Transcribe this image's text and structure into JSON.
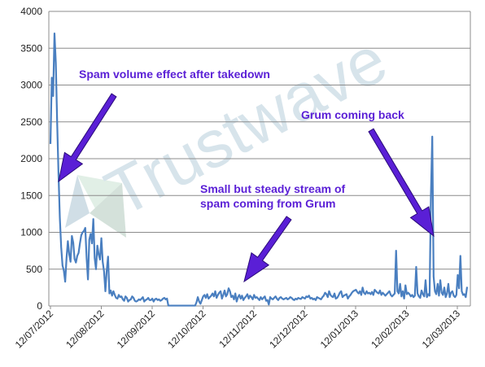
{
  "chart_data": {
    "type": "line",
    "title": "",
    "xlabel": "",
    "ylabel": "",
    "ylim": [
      0,
      4000
    ],
    "yticks": [
      0,
      500,
      1000,
      1500,
      2000,
      2500,
      3000,
      3500,
      4000
    ],
    "x_tick_labels": [
      "12/07/2012",
      "12/08/2012",
      "12/09/2012",
      "12/10/2012",
      "12/11/2012",
      "12/12/2012",
      "12/01/2013",
      "12/02/2013",
      "12/03/2013"
    ],
    "grid": true,
    "line_color": "#4a7fc0",
    "series": [
      {
        "values": [
          2200,
          3100,
          2850,
          3700,
          3300,
          2500,
          1800,
          1200,
          800,
          550,
          480,
          330,
          650,
          880,
          700,
          600,
          950,
          860,
          640,
          590,
          680,
          720,
          850,
          960,
          1000,
          1020,
          1060,
          650,
          360,
          900,
          980,
          850,
          1180,
          650,
          500,
          820,
          700,
          630,
          920,
          600,
          470,
          200,
          480,
          670,
          170,
          210,
          140,
          200,
          150,
          110,
          100,
          150,
          120,
          130,
          90,
          70,
          130,
          110,
          60,
          80,
          90,
          130,
          110,
          70,
          60,
          70,
          90,
          80,
          100,
          120,
          60,
          80,
          90,
          110,
          80,
          80,
          100,
          60,
          90,
          100,
          80,
          90,
          70,
          80,
          100,
          110,
          90,
          100,
          5,
          5,
          5,
          5,
          5,
          5,
          5,
          5,
          5,
          5,
          5,
          5,
          5,
          5,
          5,
          5,
          5,
          5,
          5,
          5,
          5,
          50,
          120,
          60,
          30,
          80,
          130,
          150,
          110,
          160,
          100,
          120,
          140,
          170,
          130,
          200,
          110,
          150,
          180,
          200,
          100,
          150,
          210,
          130,
          160,
          240,
          200,
          120,
          140,
          90,
          170,
          60,
          120,
          150,
          100,
          140,
          80,
          110,
          130,
          160,
          100,
          140,
          120,
          90,
          150,
          110,
          120,
          100,
          80,
          120,
          90,
          110,
          130,
          70,
          80,
          20,
          120,
          100,
          90,
          110,
          130,
          100,
          80,
          110,
          120,
          100,
          90,
          100,
          110,
          90,
          100,
          120,
          110,
          90,
          80,
          100,
          90,
          110,
          100,
          95,
          120,
          110,
          100,
          130,
          120,
          140,
          100,
          110,
          90,
          100,
          80,
          120,
          110,
          100,
          90,
          120,
          140,
          180,
          160,
          120,
          200,
          150,
          130,
          120,
          170,
          100,
          110,
          140,
          180,
          200,
          120,
          140,
          150,
          160,
          100,
          130,
          150,
          180,
          200,
          210,
          220,
          190,
          170,
          200,
          150,
          250,
          180,
          160,
          200,
          170,
          180,
          160,
          190,
          150,
          220,
          200,
          180,
          170,
          210,
          150,
          180,
          160,
          140,
          160,
          180,
          200,
          150,
          130,
          150,
          170,
          750,
          200,
          170,
          300,
          130,
          200,
          100,
          280,
          160,
          180,
          160,
          130,
          150,
          120,
          140,
          530,
          170,
          130,
          110,
          210,
          160,
          130,
          350,
          120,
          160,
          140,
          1500,
          2300,
          400,
          200,
          160,
          300,
          140,
          350,
          180,
          150,
          250,
          120,
          170,
          300,
          120,
          180,
          200,
          140,
          120,
          150,
          420,
          240,
          680,
          200,
          150,
          160,
          120,
          260
        ]
      }
    ],
    "annotations": [
      "Spam volume effect after takedown",
      "Grum coming back",
      "Small but steady stream of",
      "spam coming from Grum"
    ],
    "watermark": "Trustwave"
  }
}
